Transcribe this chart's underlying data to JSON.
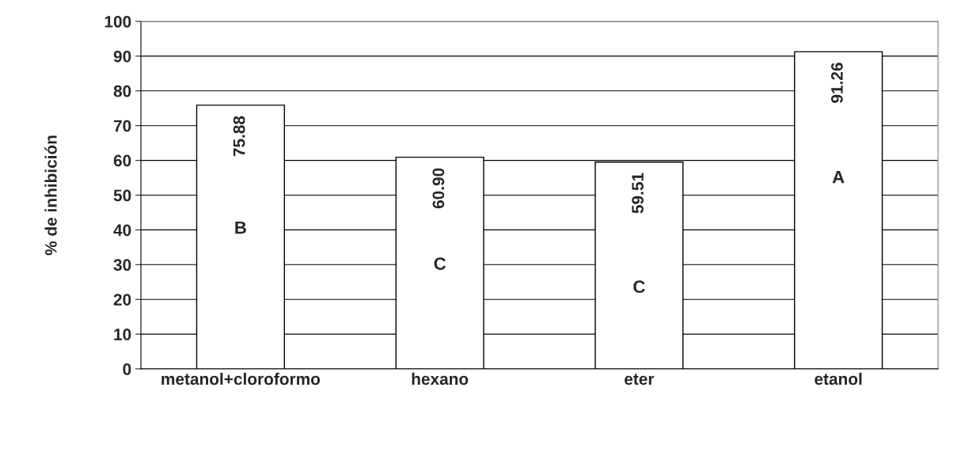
{
  "chart_data": {
    "type": "bar",
    "ylabel": "% de inhibición",
    "categories": [
      "metanol+cloroformo",
      "hexano",
      "eter",
      "etanol"
    ],
    "values": [
      75.88,
      60.9,
      59.51,
      91.26
    ],
    "value_labels": [
      "75.88",
      "60.90",
      "59.51",
      "91.26"
    ],
    "color": "#ffffff",
    "ylim": [
      0,
      100
    ],
    "yticks": [
      0,
      10,
      20,
      30,
      40,
      50,
      60,
      70,
      80,
      90,
      100
    ],
    "grid": "y",
    "annotations": [
      "B",
      "C",
      "C",
      "A"
    ]
  }
}
